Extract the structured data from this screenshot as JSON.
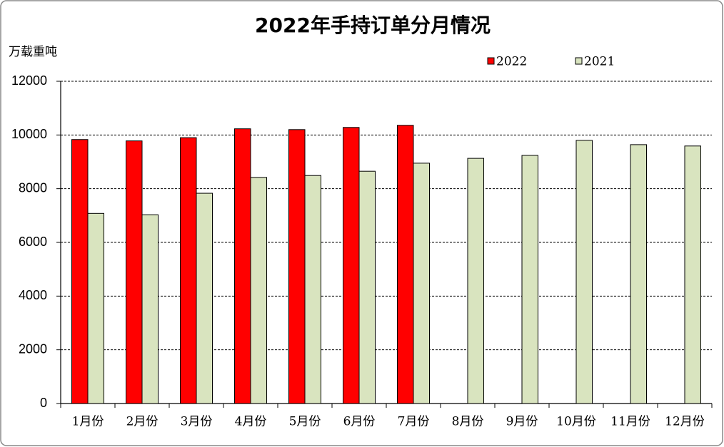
{
  "chart_data": {
    "type": "bar",
    "title": "2022年手持订单分月情况",
    "y_label": "万载重吨",
    "categories": [
      "1月份",
      "2月份",
      "3月份",
      "4月份",
      "5月份",
      "6月份",
      "7月份",
      "8月份",
      "9月份",
      "10月份",
      "11月份",
      "12月份"
    ],
    "series": [
      {
        "name": "2022",
        "color": "#ff0000",
        "values": [
          9830,
          9780,
          9900,
          10230,
          10200,
          10280,
          10360,
          null,
          null,
          null,
          null,
          null
        ]
      },
      {
        "name": "2021",
        "color": "#d9e4bf",
        "values": [
          7080,
          7030,
          7830,
          8420,
          8490,
          8650,
          8950,
          9130,
          9240,
          9800,
          9640,
          9590
        ]
      }
    ],
    "ylim": [
      0,
      12000
    ],
    "yticks": [
      0,
      2000,
      4000,
      6000,
      8000,
      10000,
      12000
    ],
    "grid": true,
    "legend": "top-right"
  }
}
